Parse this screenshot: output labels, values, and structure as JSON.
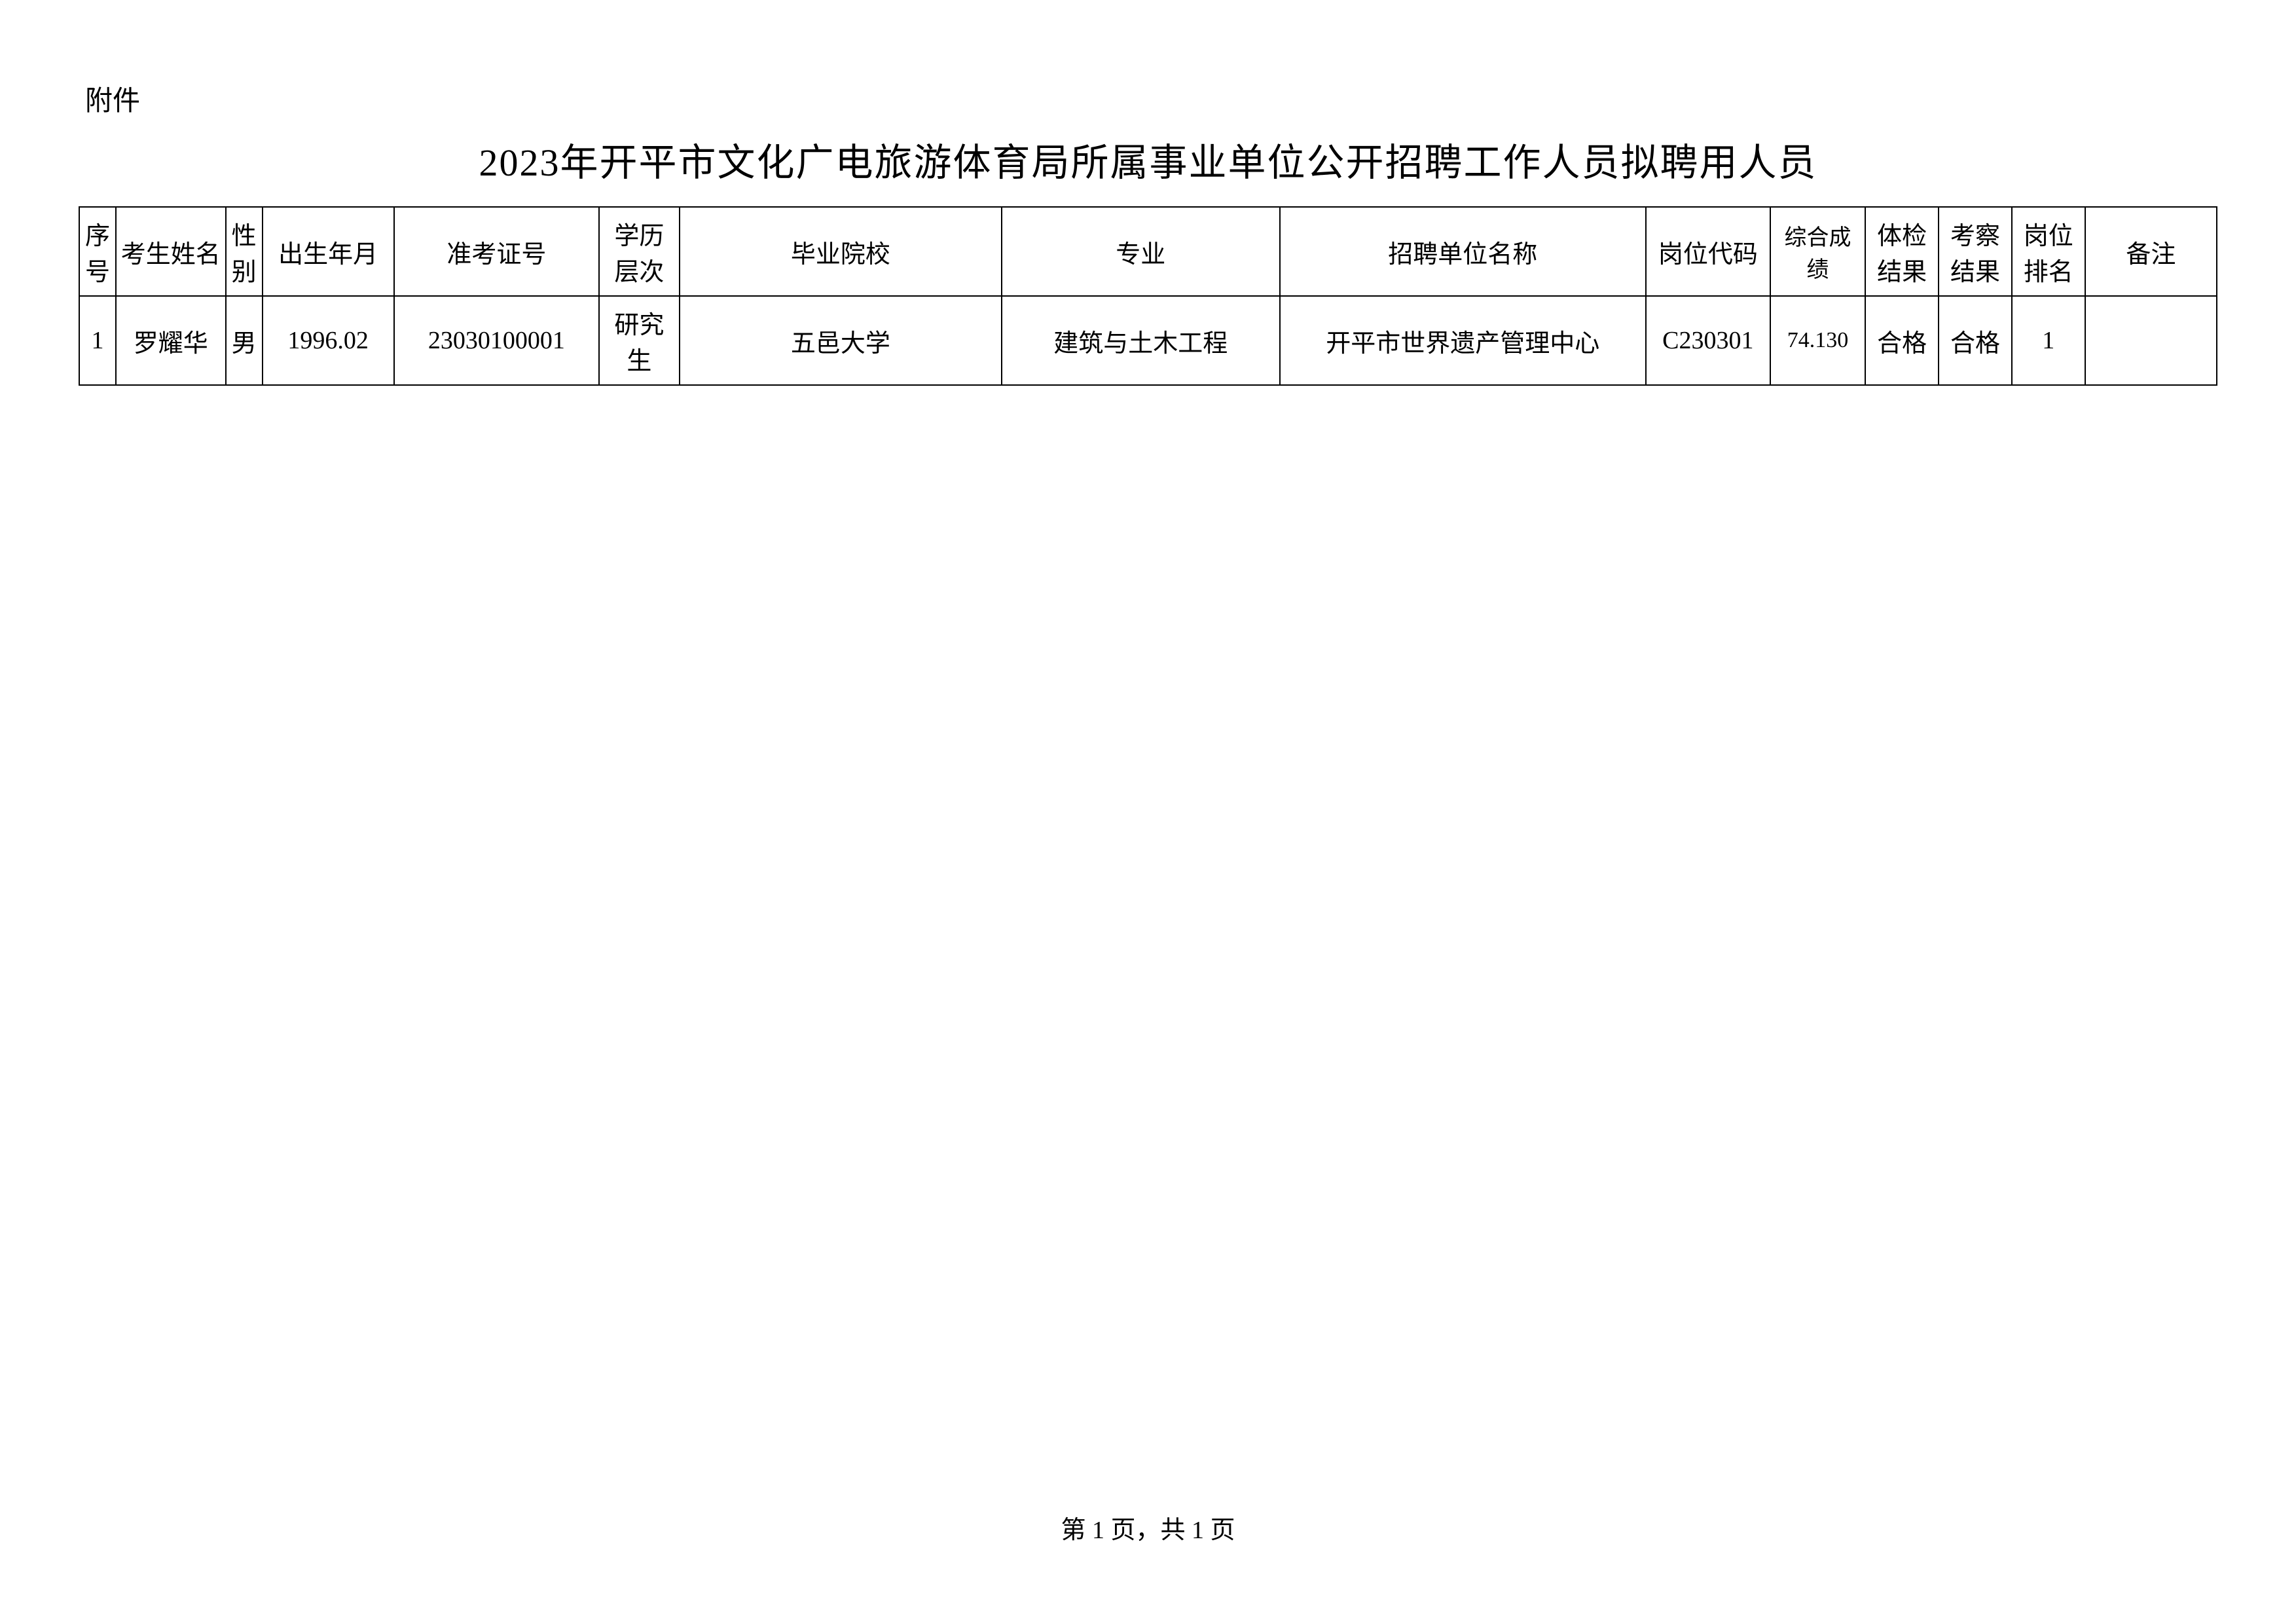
{
  "attachment_label": "附件",
  "title": "2023年开平市文化广电旅游体育局所属事业单位公开招聘工作人员拟聘用人员",
  "table": {
    "columns": [
      "序号",
      "考生姓名",
      "性别",
      "出生年月",
      "准考证号",
      "学历层次",
      "毕业院校",
      "专业",
      "招聘单位名称",
      "岗位代码",
      "综合成绩",
      "体检结果",
      "考察结果",
      "岗位排名",
      "备注"
    ],
    "rows": [
      {
        "seq": "1",
        "name": "罗耀华",
        "gender": "男",
        "birth": "1996.02",
        "exam_no": "23030100001",
        "edu": "研究生",
        "school": "五邑大学",
        "major": "建筑与土木工程",
        "unit": "开平市世界遗产管理中心",
        "post_code": "C230301",
        "score": "74.130",
        "physical": "合格",
        "inspect": "合格",
        "rank": "1",
        "remark": ""
      }
    ]
  },
  "footer": "第 1 页，共 1 页",
  "colors": {
    "background": "#ffffff",
    "text": "#000000",
    "border": "#000000"
  },
  "typography": {
    "title_fontsize": 58,
    "header_fontsize": 38,
    "cell_fontsize": 38,
    "footer_fontsize": 38,
    "attachment_fontsize": 42
  }
}
